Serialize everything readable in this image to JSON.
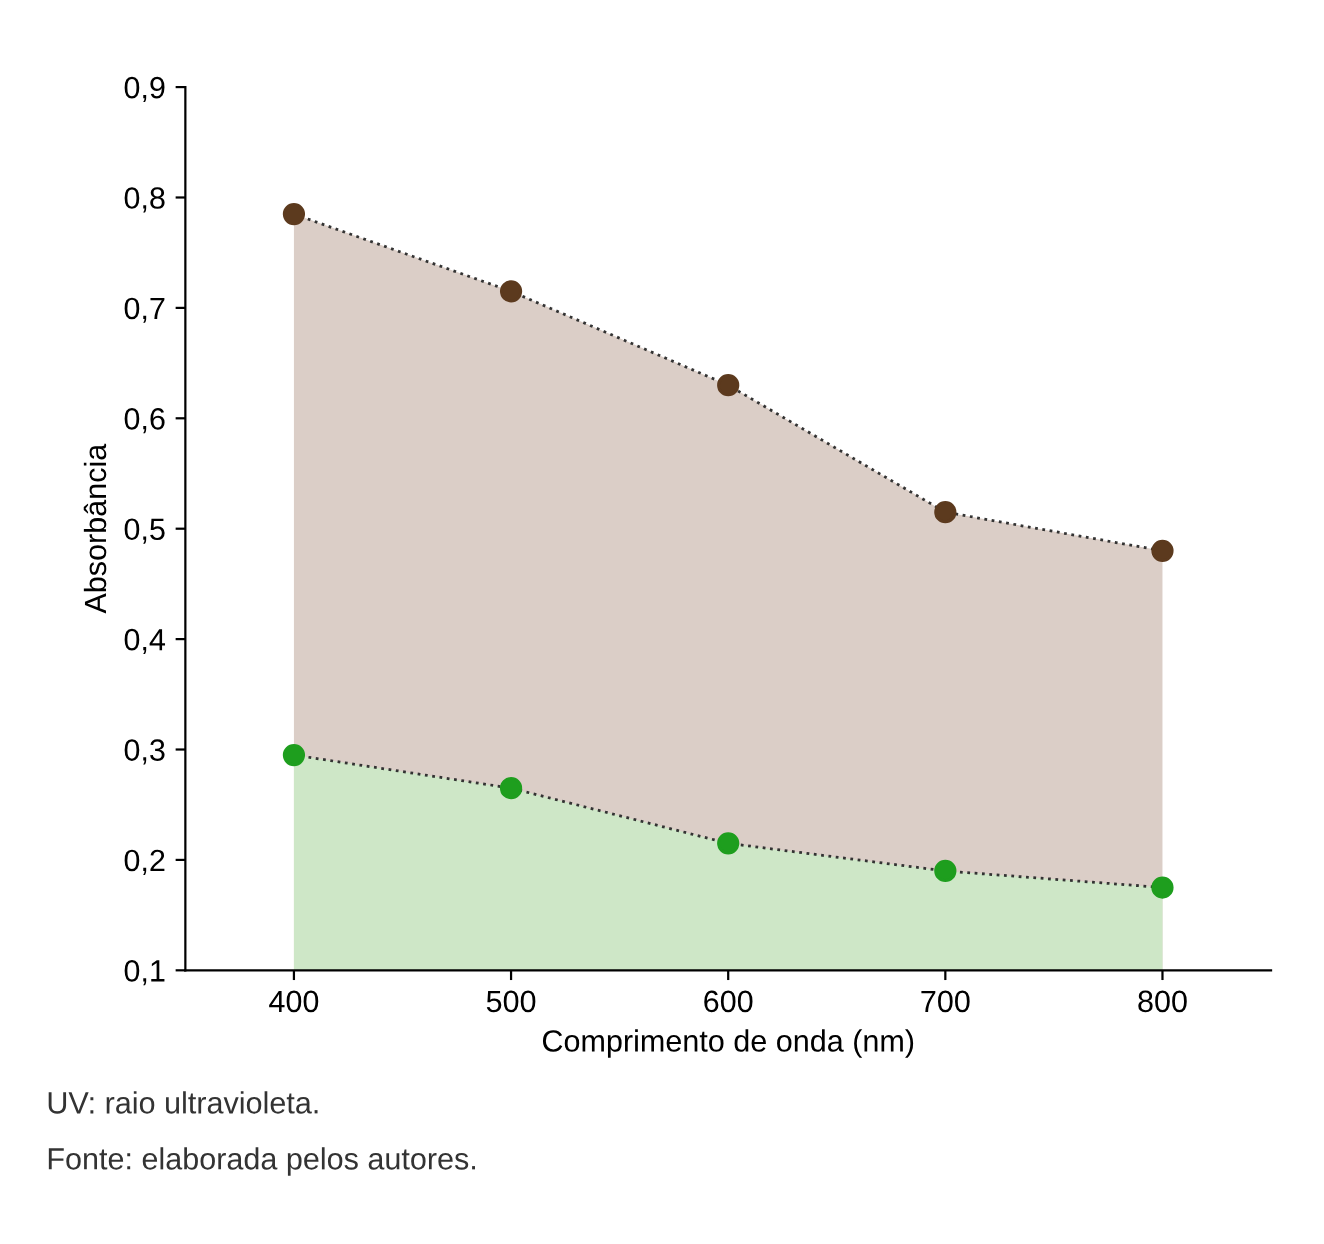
{
  "chart_data": {
    "type": "area",
    "xlabel": "Comprimento de onda (nm)",
    "ylabel": "Absorbância",
    "x": [
      400,
      500,
      600,
      700,
      800
    ],
    "series": [
      {
        "color": "#5c3a1e",
        "values": [
          0.785,
          0.715,
          0.63,
          0.515,
          0.48
        ]
      },
      {
        "color": "#1e9e1e",
        "values": [
          0.295,
          0.265,
          0.215,
          0.19,
          0.175
        ]
      }
    ],
    "xlim": [
      350,
      850
    ],
    "xticks": [
      400,
      500,
      600,
      700,
      800
    ],
    "ylim": [
      0.1,
      0.9
    ],
    "yticks": [
      {
        "value": 0.1,
        "label": "0,1"
      },
      {
        "value": 0.2,
        "label": "0,2"
      },
      {
        "value": 0.3,
        "label": "0,3"
      },
      {
        "value": 0.4,
        "label": "0,4"
      },
      {
        "value": 0.5,
        "label": "0,5"
      },
      {
        "value": 0.6,
        "label": "0,6"
      },
      {
        "value": 0.7,
        "label": "0,7"
      },
      {
        "value": 0.8,
        "label": "0,8"
      },
      {
        "value": 0.9,
        "label": "0,9"
      }
    ],
    "grid": false,
    "marker": "circle",
    "line_style": "dotted",
    "annotations": [
      "UV: raio ultravioleta.",
      "Fonte: elaborada pelos autores."
    ]
  }
}
